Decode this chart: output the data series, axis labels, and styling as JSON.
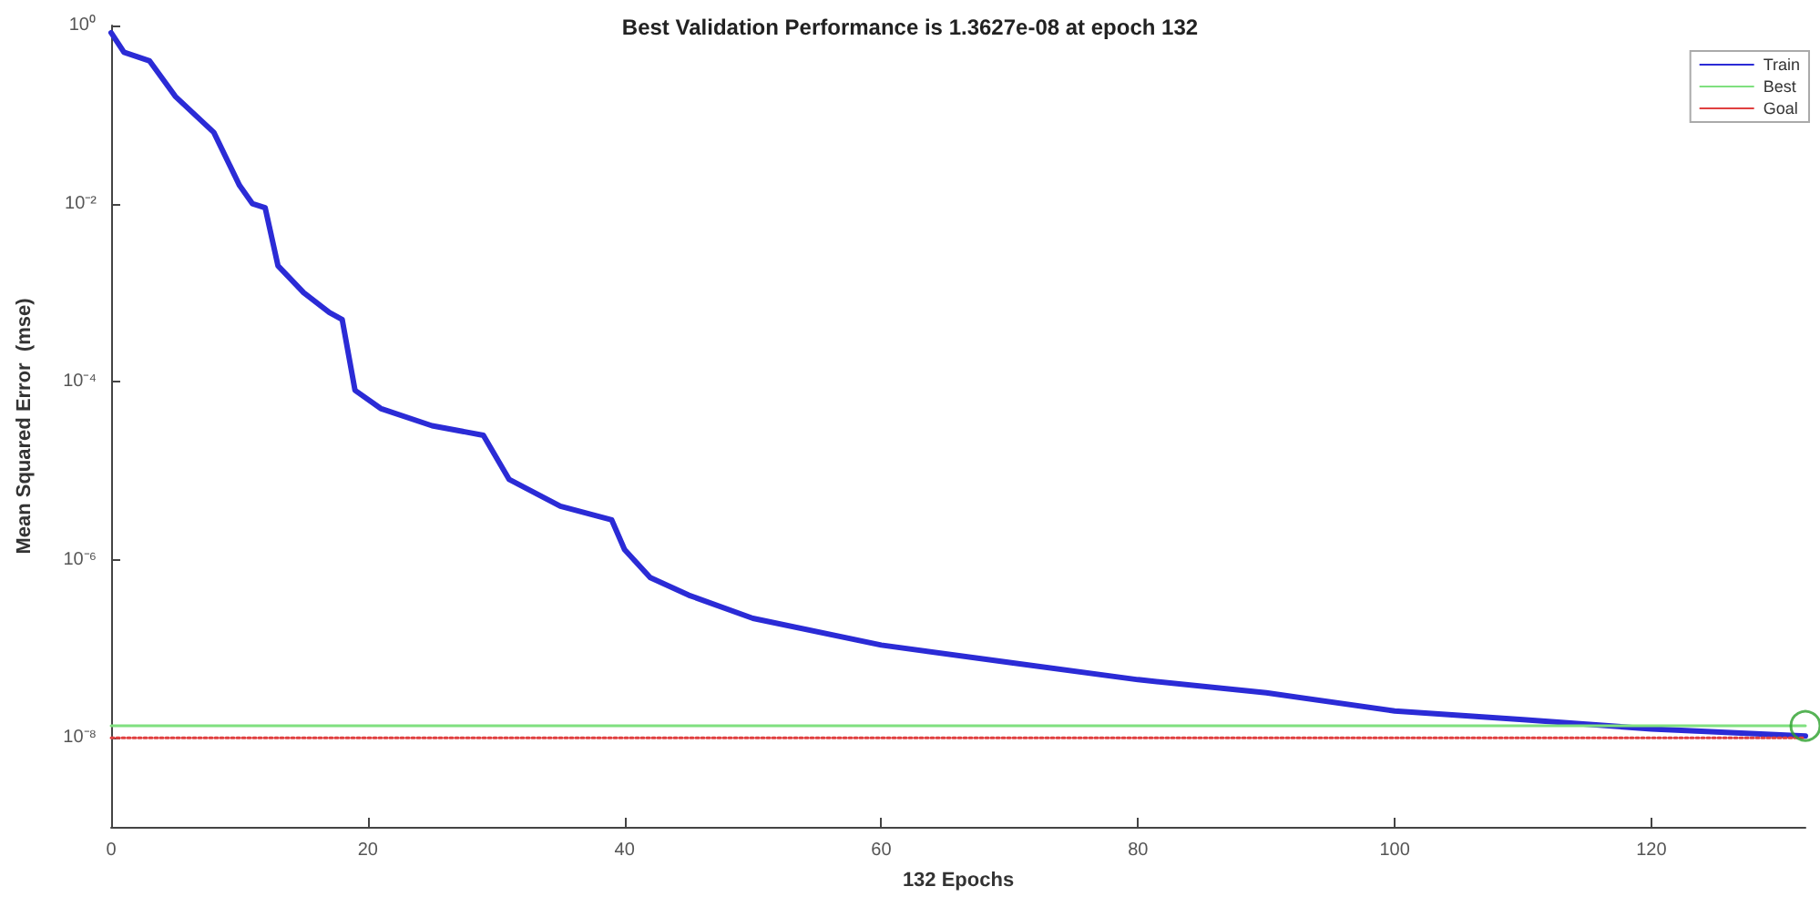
{
  "chart_data": {
    "type": "line",
    "title": "Best Validation Performance is 1.3627e-08 at epoch 132",
    "xlabel": "132 Epochs",
    "ylabel": "Mean Squared Error  (mse)",
    "log": "y",
    "grid": false,
    "legend": "top right",
    "marker": "none",
    "xlim": [
      0,
      132
    ],
    "xticks": [
      0,
      20,
      40,
      60,
      80,
      100,
      120
    ],
    "ylim": [
      1e-09,
      1
    ],
    "yticks": [
      {
        "value": 1,
        "label": "10⁰"
      },
      {
        "value": 0.01,
        "label": "10⁻²"
      },
      {
        "value": 0.0001,
        "label": "10⁻⁴"
      },
      {
        "value": 1e-06,
        "label": "10⁻⁶"
      },
      {
        "value": 1e-08,
        "label": "10⁻⁸"
      }
    ],
    "series": [
      {
        "name": "Train",
        "color": "#2b2bd6",
        "x": [
          0,
          1,
          3,
          5,
          8,
          10,
          11,
          12,
          13,
          15,
          17,
          18,
          19,
          21,
          25,
          29,
          31,
          35,
          39,
          40,
          42,
          45,
          50,
          60,
          70,
          80,
          90,
          100,
          110,
          120,
          132
        ],
        "values": [
          0.83,
          0.5,
          0.4,
          0.16,
          0.063,
          0.016,
          0.01,
          0.009,
          0.002,
          0.001,
          0.0006,
          0.0005,
          8e-05,
          5e-05,
          3.2e-05,
          2.5e-05,
          8e-06,
          4e-06,
          2.8e-06,
          1.3e-06,
          6.3e-07,
          4e-07,
          2.2e-07,
          1.1e-07,
          7e-08,
          4.5e-08,
          3.2e-08,
          2e-08,
          1.6e-08,
          1.26e-08,
          1.05e-08
        ]
      },
      {
        "name": "Best",
        "color": "#7fe07f",
        "line_style": "solid",
        "x": [
          0,
          132
        ],
        "values": [
          1.3627e-08,
          1.3627e-08
        ]
      },
      {
        "name": "Goal",
        "color": "#e04040",
        "line_style": "dotted",
        "x": [
          0,
          132
        ],
        "values": [
          1e-08,
          1e-08
        ]
      },
      {
        "type": "scatter",
        "marker": "circle",
        "color": "#2ca02c",
        "x": [
          132
        ],
        "values": [
          1.3627e-08
        ]
      }
    ]
  }
}
